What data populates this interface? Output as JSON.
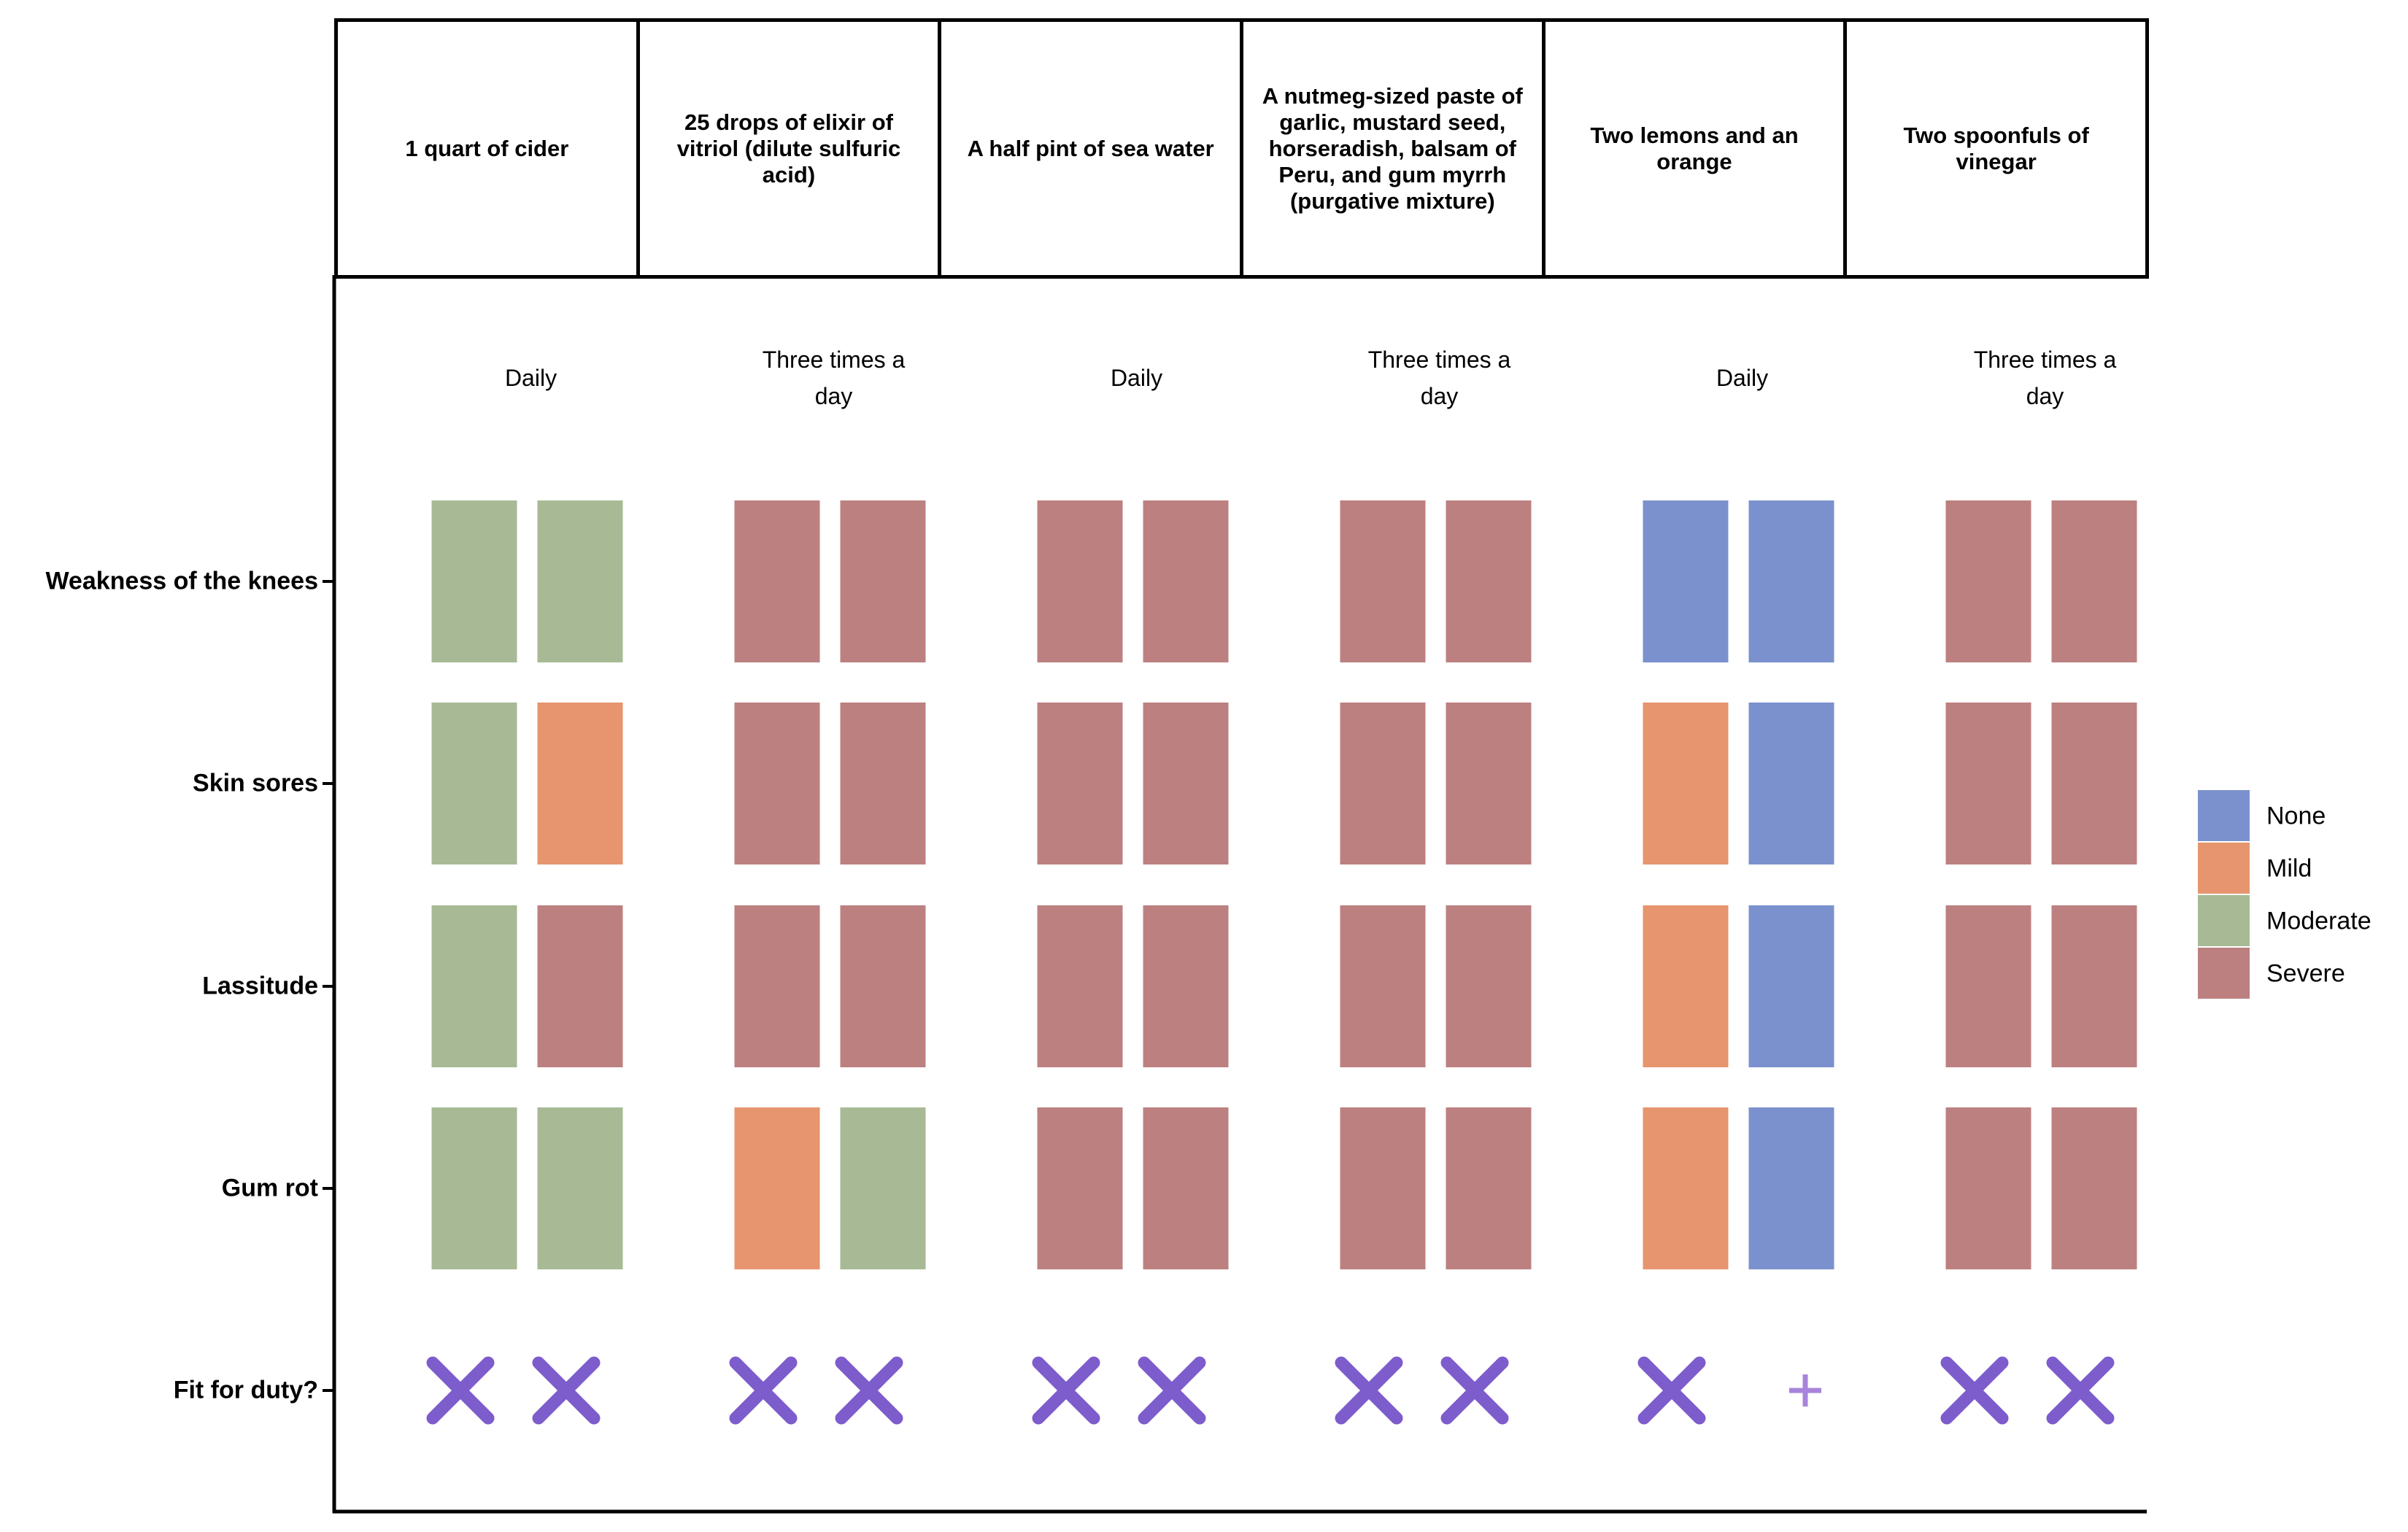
{
  "chart_data": {
    "type": "heatmap",
    "title": "",
    "treatments": [
      {
        "name": "1 quart of cider",
        "frequency": "Daily"
      },
      {
        "name": "25 drops of elixir of vitriol (dilute sulfuric acid)",
        "frequency": "Three times a day"
      },
      {
        "name": "A half pint of sea water",
        "frequency": "Daily"
      },
      {
        "name": "A nutmeg-sized paste of garlic, mustard seed, horseradish, balsam of Peru, and gum myrrh (purgative mixture)",
        "frequency": "Three times a day"
      },
      {
        "name": "Two lemons and an orange",
        "frequency": "Daily"
      },
      {
        "name": "Two spoonfuls of vinegar",
        "frequency": "Three times a day"
      }
    ],
    "symptoms": [
      "Weakness of the knees",
      "Skin sores",
      "Lassitude",
      "Gum rot"
    ],
    "fit_label": "Fit for duty?",
    "severity_levels": [
      "None",
      "Mild",
      "Moderate",
      "Severe"
    ],
    "severity_colors": {
      "None": "#7b91ce",
      "Mild": "#e6956e",
      "Moderate": "#a7ba95",
      "Severe": "#bd8080"
    },
    "marker_color": "#7d5ccc",
    "legend_position": "right",
    "patients_per_treatment": 2,
    "severity": [
      [
        [
          "Moderate",
          "Moderate"
        ],
        [
          "Moderate",
          "Mild"
        ],
        [
          "Moderate",
          "Severe"
        ],
        [
          "Moderate",
          "Moderate"
        ]
      ],
      [
        [
          "Severe",
          "Severe"
        ],
        [
          "Severe",
          "Severe"
        ],
        [
          "Severe",
          "Severe"
        ],
        [
          "Mild",
          "Moderate"
        ]
      ],
      [
        [
          "Severe",
          "Severe"
        ],
        [
          "Severe",
          "Severe"
        ],
        [
          "Severe",
          "Severe"
        ],
        [
          "Severe",
          "Severe"
        ]
      ],
      [
        [
          "Severe",
          "Severe"
        ],
        [
          "Severe",
          "Severe"
        ],
        [
          "Severe",
          "Severe"
        ],
        [
          "Severe",
          "Severe"
        ]
      ],
      [
        [
          "None",
          "None"
        ],
        [
          "Mild",
          "None"
        ],
        [
          "Mild",
          "None"
        ],
        [
          "Mild",
          "None"
        ]
      ],
      [
        [
          "Severe",
          "Severe"
        ],
        [
          "Severe",
          "Severe"
        ],
        [
          "Severe",
          "Severe"
        ],
        [
          "Severe",
          "Severe"
        ]
      ]
    ],
    "fit_for_duty": [
      [
        false,
        false
      ],
      [
        false,
        false
      ],
      [
        false,
        false
      ],
      [
        false,
        false
      ],
      [
        false,
        true
      ],
      [
        false,
        false
      ]
    ]
  }
}
